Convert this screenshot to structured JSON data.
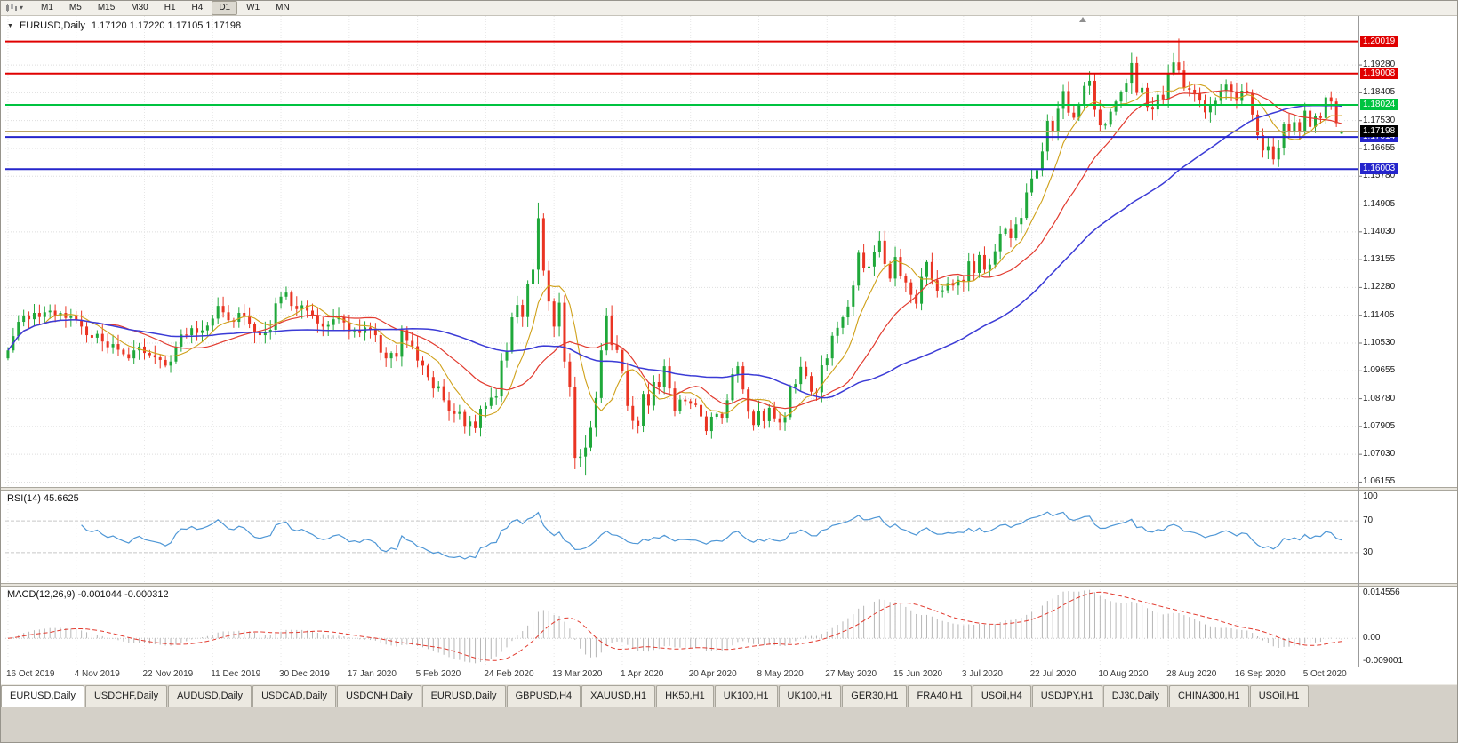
{
  "toolbar": {
    "timeframes": [
      "M1",
      "M5",
      "M15",
      "M30",
      "H1",
      "H4",
      "D1",
      "W1",
      "MN"
    ],
    "active": "D1"
  },
  "quote_header": {
    "symbol": "EURUSD,Daily",
    "ohlc": "1.17120 1.17220 1.17105 1.17198"
  },
  "panes": {
    "rsi_label": "RSI(14) 45.6625",
    "macd_label": "MACD(12,26,9) -0.001044 -0.000312"
  },
  "tabs": {
    "active_index": 0,
    "items": [
      "EURUSD,Daily",
      "USDCHF,Daily",
      "AUDUSD,Daily",
      "USDCAD,Daily",
      "USDCNH,Daily",
      "EURUSD,Daily",
      "GBPUSD,H4",
      "XAUUSD,H1",
      "HK50,H1",
      "UK100,H1",
      "UK100,H1",
      "GER30,H1",
      "FRA40,H1",
      "USOil,H4",
      "USDJPY,H1",
      "DJ30,Daily",
      "CHINA300,H1",
      "USOil,H1"
    ]
  },
  "chart_data": {
    "type": "candlestick",
    "symbol": "EURUSD",
    "timeframe": "Daily",
    "colors": {
      "up": "#1fa83a",
      "down": "#ea3423",
      "rsi": "#4f97d6",
      "macd_hist": "#b6b6b6",
      "macd_signal": "#e23a2e",
      "grid": "#dedede",
      "current_line": "#b8a268"
    },
    "moving_averages": [
      {
        "period": 8,
        "color": "#cfa018",
        "width": 1.1
      },
      {
        "period": 20,
        "color": "#e23a2e",
        "width": 1.2
      },
      {
        "period": 50,
        "color": "#3b3bd6",
        "width": 1.5
      }
    ],
    "y_axis": {
      "min": 1.06,
      "max": 1.2082,
      "ticks": [
        "1.19280",
        "1.18405",
        "1.17530",
        "1.16655",
        "1.15780",
        "1.14905",
        "1.14030",
        "1.13155",
        "1.12280",
        "1.11405",
        "1.10530",
        "1.09655",
        "1.08780",
        "1.07905",
        "1.07030",
        "1.06155"
      ]
    },
    "levels": [
      {
        "price": 1.20019,
        "label": "1.20019",
        "color": "#e00000"
      },
      {
        "price": 1.19008,
        "label": "1.19008",
        "color": "#e00000"
      },
      {
        "price": 1.18024,
        "label": "1.18024",
        "color": "#00c340"
      },
      {
        "price": 1.17014,
        "label": "1.17014",
        "color": "#2525cc"
      },
      {
        "price": 1.16003,
        "label": "1.16003",
        "color": "#2525cc"
      }
    ],
    "current_price": {
      "value": 1.17198,
      "label": "1.17198"
    },
    "x_labels": [
      {
        "i": 0,
        "label": "16 Oct 2019"
      },
      {
        "i": 13,
        "label": "4 Nov 2019"
      },
      {
        "i": 26,
        "label": "22 Nov 2019"
      },
      {
        "i": 39,
        "label": "11 Dec 2019"
      },
      {
        "i": 52,
        "label": "30 Dec 2019"
      },
      {
        "i": 65,
        "label": "17 Jan 2020"
      },
      {
        "i": 78,
        "label": "5 Feb 2020"
      },
      {
        "i": 91,
        "label": "24 Feb 2020"
      },
      {
        "i": 104,
        "label": "13 Mar 2020"
      },
      {
        "i": 117,
        "label": "1 Apr 2020"
      },
      {
        "i": 130,
        "label": "20 Apr 2020"
      },
      {
        "i": 143,
        "label": "8 May 2020"
      },
      {
        "i": 156,
        "label": "27 May 2020"
      },
      {
        "i": 169,
        "label": "15 Jun 2020"
      },
      {
        "i": 182,
        "label": "3 Jul 2020"
      },
      {
        "i": 195,
        "label": "22 Jul 2020"
      },
      {
        "i": 208,
        "label": "10 Aug 2020"
      },
      {
        "i": 221,
        "label": "28 Aug 2020"
      },
      {
        "i": 234,
        "label": "16 Sep 2020"
      },
      {
        "i": 247,
        "label": "5 Oct 2020"
      }
    ],
    "closes": [
      1.103,
      1.1075,
      1.112,
      1.114,
      1.1128,
      1.1148,
      1.1135,
      1.115,
      1.1155,
      1.114,
      1.1148,
      1.1132,
      1.1138,
      1.1126,
      1.1105,
      1.1078,
      1.107,
      1.1082,
      1.1058,
      1.104,
      1.105,
      1.1032,
      1.1018,
      1.1005,
      1.103,
      1.1042,
      1.1022,
      1.1015,
      1.1008,
      1.1,
      1.0982,
      1.0995,
      1.1042,
      1.108,
      1.1078,
      1.11,
      1.1085,
      1.1093,
      1.1108,
      1.113,
      1.117,
      1.115,
      1.1125,
      1.112,
      1.1148,
      1.114,
      1.1112,
      1.1085,
      1.1078,
      1.1088,
      1.1095,
      1.1178,
      1.1199,
      1.1212,
      1.117,
      1.116,
      1.1172,
      1.1155,
      1.114,
      1.1115,
      1.1105,
      1.111,
      1.1128,
      1.1135,
      1.1118,
      1.109,
      1.1095,
      1.1085,
      1.1102,
      1.1095,
      1.1078,
      1.1023,
      1.1005,
      1.1022,
      1.101,
      1.1094,
      1.106,
      1.1043,
      1.0998,
      1.0982,
      1.0946,
      1.091,
      1.0917,
      1.0873,
      1.084,
      1.083,
      1.0836,
      1.0792,
      1.0806,
      1.0785,
      1.0846,
      1.0855,
      1.0881,
      1.0885,
      1.0998,
      1.1026,
      1.1134,
      1.1173,
      1.1135,
      1.1238,
      1.1284,
      1.1446,
      1.1281,
      1.1184,
      1.1105,
      1.118,
      1.0995,
      1.0915,
      1.0692,
      1.0696,
      1.0724,
      1.0786,
      1.088,
      1.103,
      1.114,
      1.1047,
      1.1031,
      1.0964,
      1.0855,
      1.0808,
      1.0793,
      1.0893,
      1.0856,
      1.093,
      1.0914,
      1.098,
      1.091,
      1.0838,
      1.0875,
      1.087,
      1.0862,
      1.0858,
      1.0822,
      1.0776,
      1.0821,
      1.083,
      1.0818,
      1.0873,
      1.0955,
      1.098,
      1.0907,
      1.0837,
      1.0795,
      1.084,
      1.0807,
      1.0849,
      1.0816,
      1.0803,
      1.082,
      1.0915,
      1.0924,
      1.0978,
      1.0949,
      1.09,
      1.0898,
      1.0983,
      1.1005,
      1.1076,
      1.1101,
      1.1134,
      1.1168,
      1.1234,
      1.1337,
      1.1289,
      1.1294,
      1.134,
      1.1375,
      1.1302,
      1.1256,
      1.1324,
      1.1264,
      1.1244,
      1.1205,
      1.1177,
      1.1261,
      1.1308,
      1.1251,
      1.1218,
      1.1219,
      1.1242,
      1.1234,
      1.1252,
      1.1248,
      1.131,
      1.1274,
      1.133,
      1.1284,
      1.13,
      1.1342,
      1.1397,
      1.1412,
      1.1383,
      1.1427,
      1.1447,
      1.1527,
      1.1571,
      1.1597,
      1.1656,
      1.1752,
      1.1716,
      1.179,
      1.1846,
      1.1778,
      1.1762,
      1.1802,
      1.1862,
      1.1878,
      1.1787,
      1.1738,
      1.174,
      1.1781,
      1.1813,
      1.1842,
      1.1872,
      1.1934,
      1.184,
      1.1856,
      1.1796,
      1.1788,
      1.1834,
      1.182,
      1.1903,
      1.1936,
      1.1911,
      1.1855,
      1.185,
      1.1838,
      1.1816,
      1.1779,
      1.1802,
      1.1815,
      1.1846,
      1.1866,
      1.1845,
      1.1815,
      1.1847,
      1.1839,
      1.1772,
      1.1707,
      1.1659,
      1.1672,
      1.1631,
      1.1666,
      1.1742,
      1.172,
      1.1748,
      1.1716,
      1.1784,
      1.1733,
      1.1766,
      1.1761,
      1.1826,
      1.1813,
      1.1745,
      1.172
    ],
    "last_candle": {
      "open": 1.1712,
      "high": 1.1722,
      "low": 1.17105,
      "close": 1.17198
    },
    "wick_overrides": {
      "101": [
        1.1495,
        1.124
      ],
      "108": [
        1.0947,
        1.0656
      ],
      "110": [
        1.0762,
        1.0636
      ],
      "214": [
        1.1966,
        1.1836
      ],
      "222": [
        1.1965,
        1.1896
      ],
      "223": [
        1.2011,
        1.1902
      ]
    },
    "rsi": {
      "period": 14,
      "levels": [
        70,
        30
      ],
      "axis_ticks": [
        "100",
        "70",
        "30"
      ],
      "last_value": "45.6625"
    },
    "macd": {
      "fast": 12,
      "slow": 26,
      "signal_period": 9,
      "axis_ticks": [
        "0.014556",
        "0.00",
        "-0.009001"
      ],
      "last_values": "-0.001044 -0.000312"
    }
  }
}
